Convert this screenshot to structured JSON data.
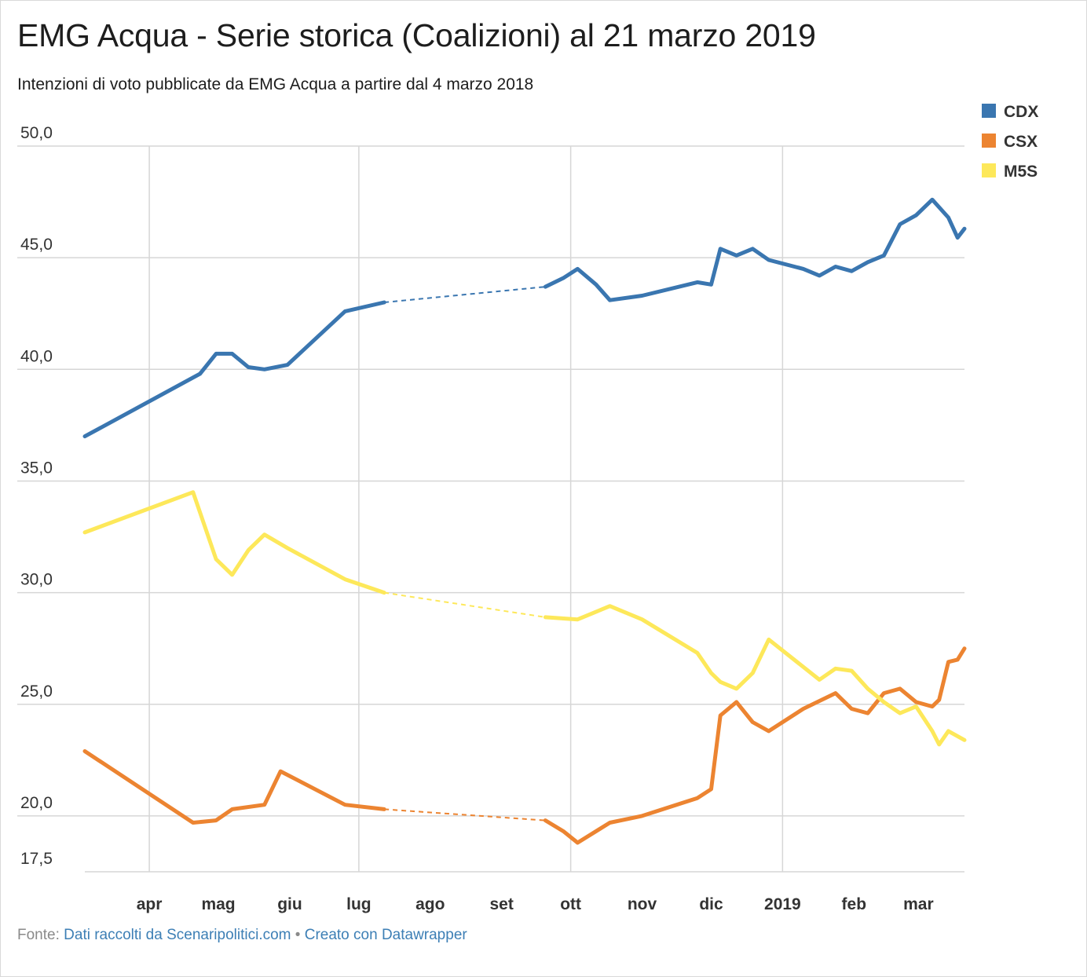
{
  "header": {
    "title": "EMG Acqua - Serie storica (Coalizioni) al 21 marzo 2019",
    "subtitle": "Intenzioni di voto pubblicate da EMG Acqua a partire dal 4 marzo 2018"
  },
  "footer": {
    "source_prefix": "Fonte:",
    "source_link": "Dati raccolti da Scenaripolitici.com",
    "separator": "•",
    "made_with": "Creato con Datawrapper"
  },
  "chart_data": {
    "type": "line",
    "title": "EMG Acqua - Serie storica (Coalizioni) al 21 marzo 2019",
    "subtitle": "Intenzioni di voto pubblicate da EMG Acqua a partire dal 4 marzo 2018",
    "xlabel": "",
    "ylabel": "",
    "xlim": [
      "2018-03-04",
      "2019-03-21"
    ],
    "ylim": [
      17.5,
      50.0
    ],
    "y_ticks": [
      "50,0",
      "45,0",
      "40,0",
      "35,0",
      "30,0",
      "25,0",
      "20,0",
      "17,5"
    ],
    "y_tick_values": [
      50.0,
      45.0,
      40.0,
      35.0,
      30.0,
      25.0,
      20.0,
      17.5
    ],
    "x_ticks": [
      {
        "label": "apr",
        "date": "2018-04-01"
      },
      {
        "label": "mag",
        "date": "2018-05-01"
      },
      {
        "label": "giu",
        "date": "2018-06-01"
      },
      {
        "label": "lug",
        "date": "2018-07-01"
      },
      {
        "label": "ago",
        "date": "2018-08-01"
      },
      {
        "label": "set",
        "date": "2018-09-01"
      },
      {
        "label": "ott",
        "date": "2018-10-01"
      },
      {
        "label": "nov",
        "date": "2018-11-01"
      },
      {
        "label": "dic",
        "date": "2018-12-01"
      },
      {
        "label": "2019",
        "date": "2019-01-01"
      },
      {
        "label": "feb",
        "date": "2019-02-01"
      },
      {
        "label": "mar",
        "date": "2019-03-01"
      }
    ],
    "grid": true,
    "legend": "top-right",
    "gap": {
      "after": "2018-07-12",
      "before": "2018-09-20",
      "style": "dashed"
    },
    "series": [
      {
        "name": "CDX",
        "color": "#3a76b0",
        "points": [
          [
            "2018-03-04",
            37.0
          ],
          [
            "2018-04-23",
            39.8
          ],
          [
            "2018-04-30",
            40.7
          ],
          [
            "2018-05-07",
            40.7
          ],
          [
            "2018-05-14",
            40.1
          ],
          [
            "2018-05-21",
            40.0
          ],
          [
            "2018-05-31",
            40.2
          ],
          [
            "2018-06-25",
            42.6
          ],
          [
            "2018-07-12",
            43.0
          ],
          [
            "2018-09-20",
            43.7
          ],
          [
            "2018-09-28",
            44.1
          ],
          [
            "2018-10-04",
            44.5
          ],
          [
            "2018-10-12",
            43.8
          ],
          [
            "2018-10-18",
            43.1
          ],
          [
            "2018-11-01",
            43.3
          ],
          [
            "2018-11-25",
            43.9
          ],
          [
            "2018-12-01",
            43.8
          ],
          [
            "2018-12-05",
            45.4
          ],
          [
            "2018-12-12",
            45.1
          ],
          [
            "2018-12-19",
            45.4
          ],
          [
            "2018-12-26",
            44.9
          ],
          [
            "2019-01-10",
            44.5
          ],
          [
            "2019-01-17",
            44.2
          ],
          [
            "2019-01-24",
            44.6
          ],
          [
            "2019-01-31",
            44.4
          ],
          [
            "2019-02-07",
            44.8
          ],
          [
            "2019-02-14",
            45.1
          ],
          [
            "2019-02-21",
            46.5
          ],
          [
            "2019-02-28",
            46.9
          ],
          [
            "2019-03-07",
            47.6
          ],
          [
            "2019-03-14",
            46.8
          ],
          [
            "2019-03-18",
            45.9
          ],
          [
            "2019-03-21",
            46.3
          ]
        ]
      },
      {
        "name": "CSX",
        "color": "#ec8431",
        "points": [
          [
            "2018-03-04",
            22.9
          ],
          [
            "2018-04-20",
            19.7
          ],
          [
            "2018-04-30",
            19.8
          ],
          [
            "2018-05-07",
            20.3
          ],
          [
            "2018-05-21",
            20.5
          ],
          [
            "2018-05-28",
            22.0
          ],
          [
            "2018-06-25",
            20.5
          ],
          [
            "2018-07-12",
            20.3
          ],
          [
            "2018-09-20",
            19.8
          ],
          [
            "2018-09-28",
            19.3
          ],
          [
            "2018-10-04",
            18.8
          ],
          [
            "2018-10-18",
            19.7
          ],
          [
            "2018-11-01",
            20.0
          ],
          [
            "2018-11-25",
            20.8
          ],
          [
            "2018-12-01",
            21.2
          ],
          [
            "2018-12-05",
            24.5
          ],
          [
            "2018-12-12",
            25.1
          ],
          [
            "2018-12-19",
            24.2
          ],
          [
            "2018-12-26",
            23.8
          ],
          [
            "2019-01-10",
            24.8
          ],
          [
            "2019-01-24",
            25.5
          ],
          [
            "2019-01-31",
            24.8
          ],
          [
            "2019-02-07",
            24.6
          ],
          [
            "2019-02-14",
            25.5
          ],
          [
            "2019-02-21",
            25.7
          ],
          [
            "2019-02-28",
            25.1
          ],
          [
            "2019-03-07",
            24.9
          ],
          [
            "2019-03-10",
            25.2
          ],
          [
            "2019-03-14",
            26.9
          ],
          [
            "2019-03-18",
            27.0
          ],
          [
            "2019-03-21",
            27.5
          ]
        ]
      },
      {
        "name": "M5S",
        "color": "#fde85a",
        "points": [
          [
            "2018-03-04",
            32.7
          ],
          [
            "2018-04-20",
            34.5
          ],
          [
            "2018-04-30",
            31.5
          ],
          [
            "2018-05-07",
            30.8
          ],
          [
            "2018-05-14",
            31.9
          ],
          [
            "2018-05-21",
            32.6
          ],
          [
            "2018-05-31",
            32.0
          ],
          [
            "2018-06-25",
            30.6
          ],
          [
            "2018-07-12",
            30.0
          ],
          [
            "2018-09-20",
            28.9
          ],
          [
            "2018-10-04",
            28.8
          ],
          [
            "2018-10-18",
            29.4
          ],
          [
            "2018-11-01",
            28.8
          ],
          [
            "2018-11-25",
            27.3
          ],
          [
            "2018-12-01",
            26.4
          ],
          [
            "2018-12-05",
            26.0
          ],
          [
            "2018-12-12",
            25.7
          ],
          [
            "2018-12-19",
            26.4
          ],
          [
            "2018-12-26",
            27.9
          ],
          [
            "2019-01-17",
            26.1
          ],
          [
            "2019-01-24",
            26.6
          ],
          [
            "2019-01-31",
            26.5
          ],
          [
            "2019-02-07",
            25.7
          ],
          [
            "2019-02-14",
            25.1
          ],
          [
            "2019-02-21",
            24.6
          ],
          [
            "2019-02-28",
            24.9
          ],
          [
            "2019-03-07",
            23.8
          ],
          [
            "2019-03-10",
            23.2
          ],
          [
            "2019-03-14",
            23.8
          ],
          [
            "2019-03-21",
            23.4
          ]
        ]
      }
    ]
  }
}
